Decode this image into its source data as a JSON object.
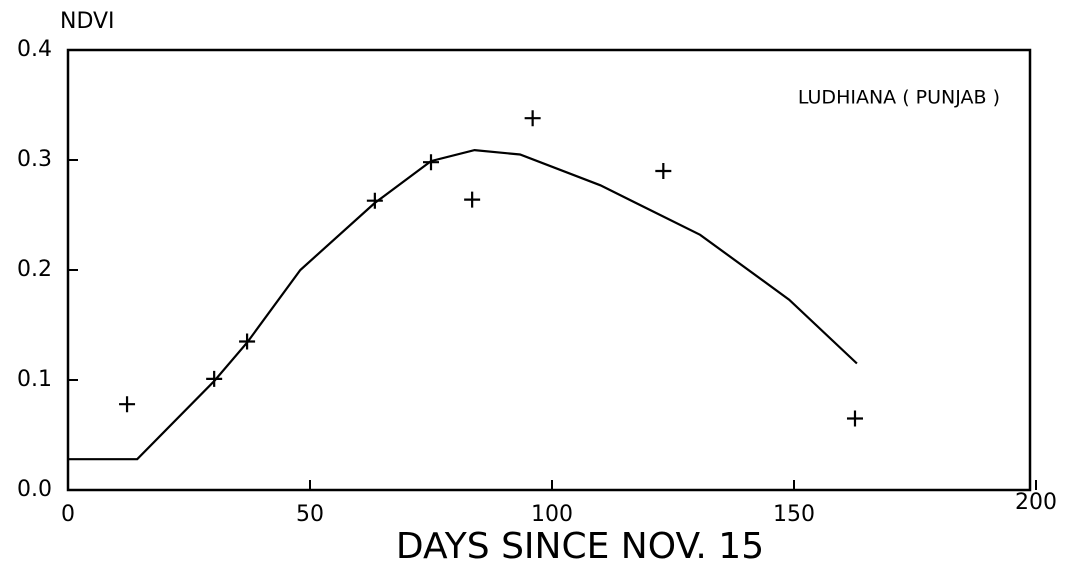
{
  "chart_data": {
    "type": "scatter",
    "annotation": "LUDHIANA ( PUNJAB )",
    "ylabel": "NDVI",
    "xlabel": "DAYS SINCE NOV. 15",
    "xlim": [
      0,
      200
    ],
    "xticks": [
      0,
      50,
      100,
      150,
      200
    ],
    "ylim": [
      0,
      0.4
    ],
    "yticks": [
      {
        "value": 0,
        "label": "0.0"
      },
      0.1,
      0.2,
      0.3,
      0.4
    ],
    "series": [
      {
        "type": "scatter",
        "color": "#000000",
        "x": [
          12.2,
          30.2,
          37,
          63.4,
          75,
          83.5,
          96,
          123,
          162.6
        ],
        "values": [
          0.078,
          0.101,
          0.135,
          0.263,
          0.298,
          0.264,
          0.338,
          0.29,
          0.065
        ]
      },
      {
        "type": "line",
        "color": "#000000",
        "x": [
          0,
          14.3,
          30.2,
          37,
          48,
          63.4,
          75,
          84,
          93.4,
          110,
          130.6,
          149,
          163
        ],
        "values": [
          0.028,
          0.028,
          0.099,
          0.134,
          0.2,
          0.261,
          0.299,
          0.309,
          0.305,
          0.277,
          0.232,
          0.173,
          0.115
        ]
      }
    ]
  }
}
